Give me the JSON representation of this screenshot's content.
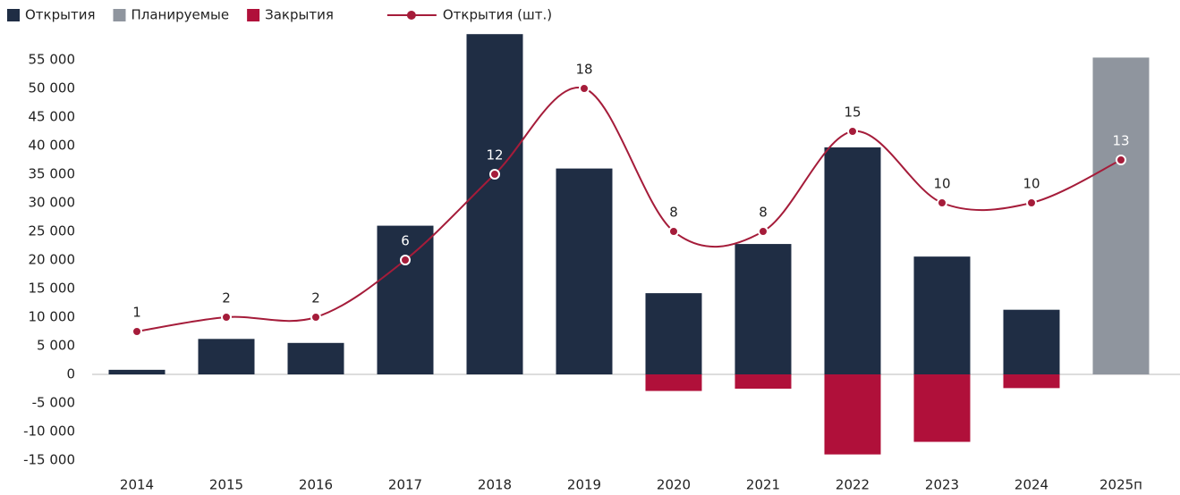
{
  "chart_data": {
    "type": "bar",
    "categories": [
      "2014",
      "2015",
      "2016",
      "2017",
      "2018",
      "2019",
      "2020",
      "2021",
      "2022",
      "2023",
      "2024",
      "2025п"
    ],
    "series": [
      {
        "name": "Открытия",
        "color": "#1f2d44",
        "values": [
          800,
          6200,
          5500,
          26000,
          59500,
          36000,
          14200,
          22800,
          39700,
          20600,
          11300,
          null
        ]
      },
      {
        "name": "Планируемые",
        "color": "#8f959e",
        "values": [
          null,
          null,
          null,
          null,
          null,
          null,
          null,
          null,
          null,
          null,
          null,
          55400
        ]
      },
      {
        "name": "Закрытия",
        "color": "#b0103a",
        "values": [
          null,
          null,
          null,
          null,
          null,
          null,
          -2900,
          -2500,
          -14000,
          -11800,
          -2400,
          null
        ]
      },
      {
        "name": "Открытия (шт.)",
        "color": "#a51c3a",
        "type": "line",
        "axis": "y2",
        "values": [
          1,
          2,
          2,
          6,
          12,
          18,
          8,
          8,
          15,
          10,
          10,
          13
        ]
      }
    ],
    "ylim": [
      -15000,
      60000
    ],
    "yticks": [
      {
        "value": -15000,
        "label": "-15 000"
      },
      {
        "value": -10000,
        "label": "-10 000"
      },
      {
        "value": -5000,
        "label": "-5 000"
      },
      0,
      {
        "value": 5000,
        "label": "5 000"
      },
      {
        "value": 10000,
        "label": "10 000"
      },
      {
        "value": 15000,
        "label": "15 000"
      },
      {
        "value": 20000,
        "label": "20 000"
      },
      {
        "value": 25000,
        "label": "25 000"
      },
      {
        "value": 30000,
        "label": "30 000"
      },
      {
        "value": 35000,
        "label": "35 000"
      },
      {
        "value": 40000,
        "label": "40 000"
      },
      {
        "value": 45000,
        "label": "45 000"
      },
      {
        "value": 50000,
        "label": "50 000"
      },
      {
        "value": 55000,
        "label": "55 000"
      }
    ],
    "y2lim": [
      -8,
      22
    ],
    "legend": "top-left",
    "grid": false
  }
}
